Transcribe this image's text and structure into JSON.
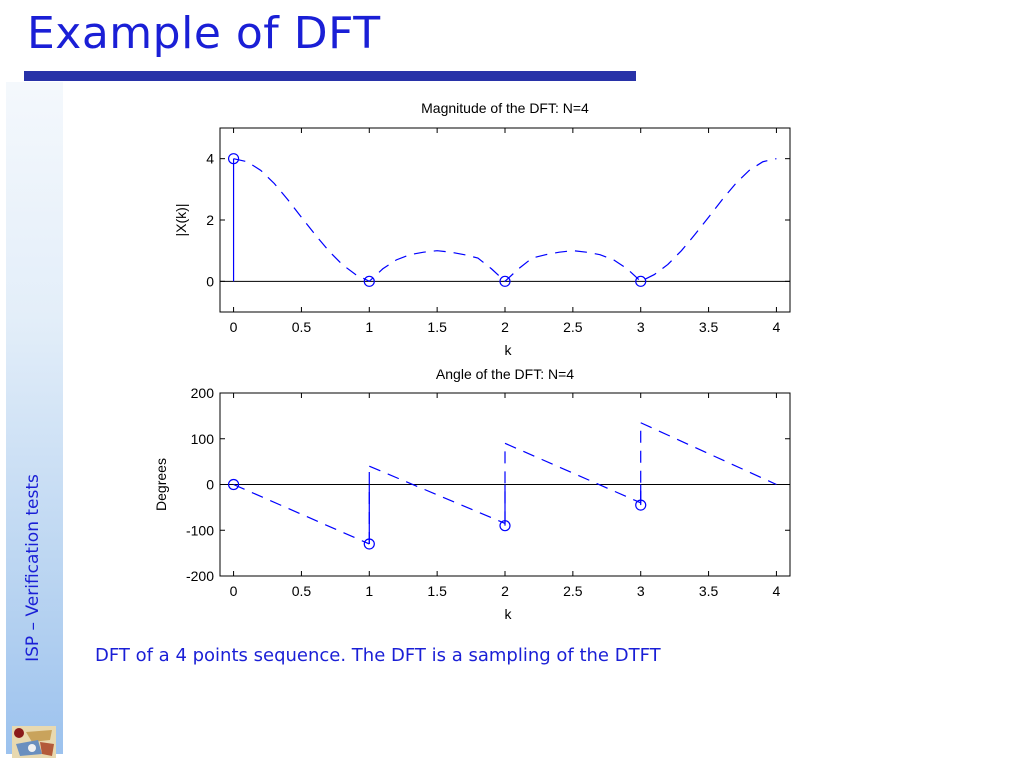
{
  "slide": {
    "title": "Example of DFT",
    "side_label": "ISP – Verification tests",
    "caption": "DFT of a 4 points sequence. The DFT is a sampling of the DTFT",
    "accent_color": "#1a1fd6",
    "rule_color": "#2832a8",
    "logo_icon": "university-logo-icon"
  },
  "chart_data": [
    {
      "type": "line",
      "title": "Magnitude of the DFT: N=4",
      "xlabel": "k",
      "ylabel": "|X(k)|",
      "xlim": [
        -0.1,
        4.1
      ],
      "ylim": [
        -1,
        5
      ],
      "xticks": [
        0,
        0.5,
        1,
        1.5,
        2,
        2.5,
        3,
        3.5,
        4
      ],
      "xtick_labels": [
        "0",
        "0.5",
        "1",
        "1.5",
        "2",
        "2.5",
        "3",
        "3.5",
        "4"
      ],
      "yticks": [
        0,
        2,
        4
      ],
      "ytick_labels": [
        "0",
        "2",
        "4"
      ],
      "zero_line": true,
      "grid": false,
      "series": [
        {
          "style": "dashed",
          "color": "#0000ff",
          "description": "DTFT magnitude |sin(2w)/sin(w/2)|, w = 2*pi*k/4",
          "x": [
            0,
            0.1,
            0.2,
            0.3,
            0.4,
            0.5,
            0.6,
            0.7,
            0.8,
            0.9,
            1.0,
            1.1,
            1.2,
            1.3,
            1.4,
            1.5,
            1.6,
            1.7,
            1.8,
            1.9,
            2.0,
            2.1,
            2.2,
            2.3,
            2.4,
            2.5,
            2.6,
            2.7,
            2.8,
            2.9,
            3.0,
            3.1,
            3.2,
            3.3,
            3.4,
            3.5,
            3.6,
            3.7,
            3.8,
            3.9,
            4.0
          ],
          "y": [
            4.0,
            3.9,
            3.62,
            3.19,
            2.66,
            2.09,
            1.53,
            1.0,
            0.55,
            0.22,
            0.0,
            0.41,
            0.7,
            0.87,
            0.95,
            1.0,
            0.95,
            0.87,
            0.76,
            0.41,
            0.0,
            0.41,
            0.76,
            0.87,
            0.95,
            1.0,
            0.95,
            0.87,
            0.7,
            0.41,
            0.0,
            0.22,
            0.55,
            1.0,
            1.53,
            2.09,
            2.66,
            3.19,
            3.62,
            3.9,
            4.0
          ]
        },
        {
          "type": "stem",
          "color": "#0000ff",
          "marker": "circle",
          "x": [
            0,
            1,
            2,
            3
          ],
          "y": [
            4,
            0,
            0,
            0
          ]
        }
      ]
    },
    {
      "type": "line",
      "title": "Angle of the DFT: N=4",
      "xlabel": "k",
      "ylabel": "Degrees",
      "xlim": [
        -0.1,
        4.1
      ],
      "ylim": [
        -200,
        200
      ],
      "xticks": [
        0,
        0.5,
        1,
        1.5,
        2,
        2.5,
        3,
        3.5,
        4
      ],
      "xtick_labels": [
        "0",
        "0.5",
        "1",
        "1.5",
        "2",
        "2.5",
        "3",
        "3.5",
        "4"
      ],
      "yticks": [
        -200,
        -100,
        0,
        100,
        200
      ],
      "ytick_labels": [
        "-200",
        "-100",
        "0",
        "100",
        "200"
      ],
      "zero_line": true,
      "grid": false,
      "series": [
        {
          "style": "dashed",
          "color": "#0000ff",
          "description": "DTFT phase (degrees), sawtooth with jumps at k=1,2,3",
          "segments": [
            {
              "x": [
                0,
                1
              ],
              "y": [
                0,
                -130
              ]
            },
            {
              "x": [
                1,
                1
              ],
              "y": [
                -130,
                40
              ]
            },
            {
              "x": [
                1,
                2
              ],
              "y": [
                40,
                -85
              ]
            },
            {
              "x": [
                2,
                2
              ],
              "y": [
                -85,
                90
              ]
            },
            {
              "x": [
                2,
                3
              ],
              "y": [
                90,
                -40
              ]
            },
            {
              "x": [
                3,
                3
              ],
              "y": [
                -40,
                135
              ]
            },
            {
              "x": [
                3,
                4
              ],
              "y": [
                135,
                0
              ]
            }
          ]
        },
        {
          "type": "stem",
          "color": "#0000ff",
          "marker": "circle",
          "x": [
            0,
            1,
            2,
            3
          ],
          "y": [
            0,
            -130,
            -90,
            -45
          ]
        }
      ]
    }
  ]
}
